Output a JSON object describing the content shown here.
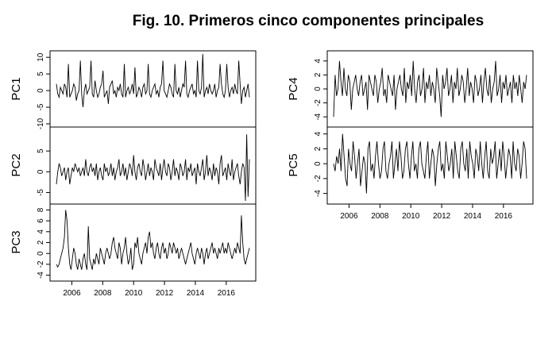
{
  "title": "Fig. 10. Primeros cinco componentes principales",
  "chart_data": {
    "type": "line",
    "title": "Fig. 10. Primeros cinco componentes principales",
    "x_ticks": [
      "2006",
      "2008",
      "2010",
      "2012",
      "2014",
      "2016"
    ],
    "x_range": [
      2005.0,
      2017.5
    ],
    "panels": [
      {
        "name": "PC1",
        "ylabel": "PC1",
        "ylim": [
          -10,
          11
        ],
        "y_ticks": [
          10,
          5,
          0,
          -5,
          -10
        ],
        "y_tick_labels": [
          "10",
          "5",
          "0",
          "-5",
          "-10"
        ],
        "values": [
          2,
          -1,
          -2,
          1,
          0,
          -1,
          2,
          1,
          -2,
          8,
          -2,
          -1,
          0,
          2,
          1,
          -3,
          -1,
          0,
          9,
          -1,
          -5,
          0,
          2,
          -1,
          0,
          1,
          9,
          -1,
          -2,
          3,
          0,
          -2,
          -1,
          1,
          2,
          6,
          -2,
          -1,
          0,
          -4,
          1,
          2,
          3,
          -1,
          0,
          -2,
          1,
          0,
          2,
          -1,
          -2,
          8,
          -2,
          0,
          1,
          -1,
          0,
          2,
          -1,
          7,
          -2,
          -1,
          1,
          0,
          -2,
          1,
          2,
          -1,
          0,
          8,
          -1,
          -2,
          0,
          1,
          2,
          -1,
          0,
          -2,
          1,
          2,
          9,
          0,
          -1,
          -2,
          0,
          2,
          1,
          -1,
          -2,
          8,
          0,
          -1,
          1,
          -2,
          0,
          2,
          1,
          9,
          -1,
          -2,
          0,
          1,
          2,
          -1,
          0,
          -2,
          9,
          0,
          -1,
          1,
          11,
          -2,
          0,
          1,
          -1,
          2,
          0,
          -1,
          0,
          2,
          -2,
          0,
          1,
          8,
          2,
          -1,
          -2,
          0,
          8,
          1,
          -2,
          0,
          1,
          -1,
          2,
          0,
          -1,
          9,
          2,
          -4,
          0,
          1,
          -2,
          0,
          2,
          -2
        ]
      },
      {
        "name": "PC2",
        "ylabel": "PC2",
        "ylim": [
          -7,
          10
        ],
        "y_ticks": [
          5,
          0,
          -5
        ],
        "y_tick_labels": [
          "5",
          "0",
          "-5"
        ],
        "values": [
          -3,
          0,
          2,
          1,
          -1,
          0,
          1,
          -2,
          0,
          1,
          -3,
          -1,
          1,
          0,
          2,
          1,
          0,
          1,
          -1,
          0,
          1,
          -1,
          3,
          0,
          -1,
          1,
          2,
          0,
          1,
          -1,
          2,
          -2,
          0,
          1,
          -1,
          -2,
          2,
          0,
          1,
          -1,
          0,
          2,
          -1,
          1,
          -2,
          0,
          1,
          3,
          -1,
          0,
          2,
          -1,
          1,
          -2,
          0,
          2,
          1,
          -1,
          4,
          0,
          -2,
          1,
          2,
          0,
          -1,
          3,
          1,
          -2,
          0,
          2,
          -1,
          1,
          0,
          -2,
          3,
          1,
          0,
          -1,
          2,
          -2,
          1,
          3,
          0,
          -1,
          2,
          1,
          -2,
          0,
          3,
          -1,
          1,
          0,
          -2,
          2,
          1,
          -1,
          0,
          3,
          -2,
          1,
          0,
          2,
          -1,
          0,
          1,
          -3,
          2,
          0,
          -1,
          1,
          3,
          -2,
          0,
          4,
          -1,
          1,
          0,
          -2,
          2,
          -1,
          1,
          0,
          -3,
          2,
          4,
          -1,
          0,
          1,
          -2,
          2,
          0,
          -1,
          3,
          -2,
          0,
          1,
          2,
          -1,
          -3,
          0,
          2,
          1,
          -7,
          9,
          -6,
          3
        ]
      },
      {
        "name": "PC3",
        "ylabel": "PC3",
        "ylim": [
          -4.5,
          8.5
        ],
        "y_ticks": [
          8,
          6,
          4,
          2,
          0,
          -2,
          -4
        ],
        "y_tick_labels": [
          "8",
          "6",
          "4",
          "2",
          "0",
          "-2",
          "-4"
        ],
        "values": [
          -2,
          -2.5,
          -2,
          -1,
          0,
          1,
          3,
          8,
          6,
          1,
          -2,
          -3,
          -1,
          1,
          0,
          -2,
          -3,
          -1,
          -2,
          -3,
          -1,
          0,
          -2,
          -3,
          5,
          -1,
          -2,
          -3,
          -1,
          -2,
          0,
          -1,
          -2,
          1,
          0,
          -1,
          -2,
          0,
          1,
          0,
          -1,
          0,
          2,
          3,
          1,
          0,
          -1,
          2,
          1,
          -2,
          0,
          1,
          3,
          0,
          -2,
          -1,
          1,
          -3,
          -2,
          2,
          1,
          3,
          0,
          -1,
          -2,
          0,
          1,
          2,
          0,
          3,
          4,
          1,
          2,
          0,
          -1,
          1,
          2,
          0,
          -1,
          1,
          2,
          0,
          1,
          -1,
          0,
          2,
          1,
          0,
          2,
          1,
          0,
          1,
          -1,
          0,
          1,
          0,
          -1,
          -2,
          -1,
          0,
          1,
          2,
          0,
          -1,
          -2,
          0,
          1,
          0,
          -1,
          1,
          0,
          -2,
          0,
          1,
          -1,
          0,
          1,
          2,
          0,
          1,
          0,
          -1,
          1,
          0,
          1,
          2,
          0,
          1,
          0,
          2,
          1,
          0,
          -1,
          0,
          1,
          0,
          2,
          1,
          0,
          7,
          2,
          -1,
          -2,
          -1,
          0,
          1
        ]
      },
      {
        "name": "PC4",
        "ylabel": "PC4",
        "ylim": [
          -5,
          5
        ],
        "y_ticks": [
          4,
          2,
          0,
          -2,
          -4
        ],
        "y_tick_labels": [
          "4",
          "2",
          "0",
          "-2",
          "-4"
        ],
        "values": [
          -4,
          2,
          -1,
          0,
          4,
          1,
          -1,
          3,
          0,
          -1,
          2,
          1,
          -3,
          0,
          1,
          2,
          0,
          -1,
          1,
          2,
          -1,
          0,
          1,
          -3,
          2,
          1,
          0,
          -1,
          2,
          1,
          -2,
          0,
          1,
          3,
          -1,
          0,
          -2,
          2,
          1,
          0,
          -1,
          2,
          -3,
          0,
          1,
          2,
          0,
          -1,
          3,
          -2,
          1,
          0,
          2,
          -1,
          4,
          0,
          -2,
          1,
          2,
          -1,
          0,
          3,
          -2,
          1,
          0,
          2,
          -1,
          1,
          0,
          -2,
          3,
          1,
          -1,
          -4,
          2,
          0,
          1,
          3,
          -1,
          0,
          2,
          -2,
          1,
          0,
          3,
          -1,
          0,
          2,
          1,
          -2,
          0,
          3,
          -1,
          1,
          0,
          -2,
          2,
          1,
          -1,
          0,
          2,
          -2,
          1,
          3,
          0,
          -1,
          2,
          -2,
          0,
          1,
          4,
          -1,
          0,
          2,
          -2,
          1,
          0,
          2,
          -1,
          0,
          1,
          -2,
          2,
          0,
          1,
          -1,
          2,
          0,
          -2,
          1,
          0,
          2
        ]
      },
      {
        "name": "PC5",
        "ylabel": "PC5",
        "ylim": [
          -5,
          4.5
        ],
        "y_ticks": [
          4,
          2,
          0,
          -2,
          -4
        ],
        "y_tick_labels": [
          "4",
          "2",
          "0",
          "-2",
          "-4"
        ],
        "values": [
          0,
          -1,
          1,
          0,
          2,
          -1,
          4,
          1,
          -2,
          -3,
          2,
          0,
          -1,
          3,
          1,
          -2,
          0,
          2,
          -3,
          -1,
          1,
          0,
          -4,
          2,
          3,
          -1,
          0,
          -2,
          1,
          3,
          0,
          -2,
          -1,
          2,
          3,
          -1,
          -2,
          0,
          1,
          3,
          -2,
          0,
          2,
          -1,
          3,
          1,
          -2,
          -1,
          2,
          3,
          0,
          -2,
          1,
          3,
          -1,
          0,
          -2,
          2,
          3,
          0,
          -1,
          -2,
          1,
          3,
          -2,
          0,
          2,
          1,
          -3,
          0,
          2,
          3,
          -1,
          0,
          -2,
          3,
          1,
          -1,
          0,
          2,
          -2,
          3,
          1,
          -1,
          -2,
          2,
          3,
          0,
          -1,
          2,
          -2,
          3,
          1,
          0,
          -2,
          2,
          1,
          -1,
          3,
          0,
          -2,
          1,
          3,
          -1,
          -2,
          2,
          0,
          1,
          3,
          -2,
          0,
          2,
          -1,
          3,
          1,
          -2,
          0,
          2,
          1,
          -2,
          3,
          0,
          -1,
          2,
          1,
          -2,
          0,
          3,
          2,
          -2
        ]
      }
    ]
  }
}
